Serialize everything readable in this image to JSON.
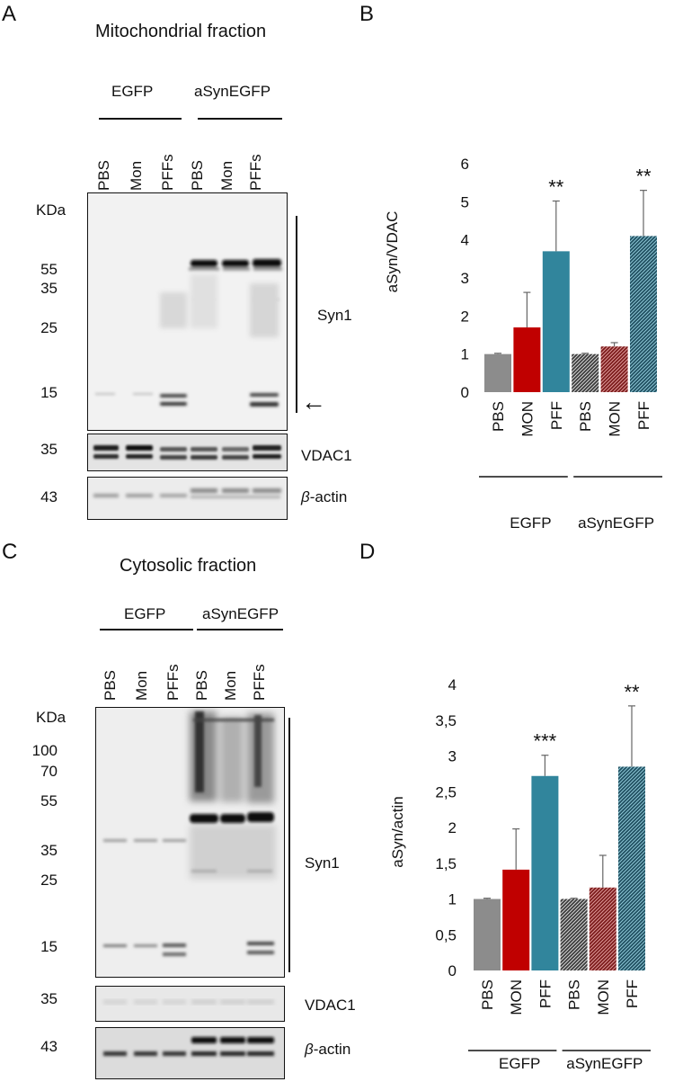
{
  "panels": {
    "A": {
      "letter": "A",
      "title": "Mitochondrial fraction",
      "groups": [
        "EGFP",
        "aSynEGFP"
      ],
      "lanes": [
        "PBS",
        "Mon",
        "PFFs",
        "PBS",
        "Mon",
        "PFFs"
      ],
      "kda_label": "KDa",
      "mw_markers": [
        "55",
        "35",
        "25",
        "15"
      ],
      "bands": {
        "syn1": "Syn1",
        "vdac": "VDAC1",
        "actin_prefix": "β",
        "actin_suffix": "-actin"
      },
      "vdac_mw": "35",
      "actin_mw": "43",
      "arrow": "←"
    },
    "C": {
      "letter": "C",
      "title": "Cytosolic fraction",
      "groups": [
        "EGFP",
        "aSynEGFP"
      ],
      "lanes": [
        "PBS",
        "Mon",
        "PFFs",
        "PBS",
        "Mon",
        "PFFs"
      ],
      "kda_label": "KDa",
      "mw_markers": [
        "100",
        "70",
        "55",
        "35",
        "25",
        "15"
      ],
      "bands": {
        "syn1": "Syn1",
        "vdac": "VDAC1",
        "actin_prefix": "β",
        "actin_suffix": "-actin"
      },
      "vdac_mw": "35",
      "actin_mw": "43"
    },
    "B": {
      "letter": "B"
    },
    "D": {
      "letter": "D"
    }
  },
  "colors": {
    "pbs": "#8c8c8c",
    "mon": "#c00000",
    "pff": "#31859c",
    "pbs_hatch": "#3a3a3a",
    "mon_hatch": "#7a1a1a",
    "pff_hatch": "#1f4e5f"
  },
  "chart_data": [
    {
      "type": "bar",
      "panel": "B",
      "ylabel": "aSyn/VDAC",
      "categories": [
        "PBS",
        "MON",
        "PFF",
        "PBS",
        "MON",
        "PFF"
      ],
      "groups": [
        "EGFP",
        "aSynEGFP"
      ],
      "values": [
        1.0,
        1.7,
        3.7,
        1.0,
        1.2,
        4.1
      ],
      "errors": [
        0.02,
        0.92,
        1.32,
        0.02,
        0.1,
        1.2
      ],
      "significance": [
        "",
        "",
        "**",
        "",
        "",
        "**"
      ],
      "yticks": [
        "0",
        "1",
        "2",
        "3",
        "4",
        "5",
        "6"
      ],
      "ylim": [
        0,
        6
      ]
    },
    {
      "type": "bar",
      "panel": "D",
      "ylabel": "aSyn/actin",
      "categories": [
        "PBS",
        "MON",
        "PFF",
        "PBS",
        "MON",
        "PFF"
      ],
      "groups": [
        "EGFP",
        "aSynEGFP"
      ],
      "values": [
        1.0,
        1.41,
        2.72,
        1.0,
        1.16,
        2.85
      ],
      "errors": [
        0.01,
        0.57,
        0.29,
        0.01,
        0.45,
        0.85
      ],
      "significance": [
        "",
        "",
        "***",
        "",
        "",
        "**"
      ],
      "yticks": [
        "0",
        "0,5",
        "1",
        "1,5",
        "2",
        "2,5",
        "3",
        "3,5",
        "4"
      ],
      "ylim": [
        0,
        4
      ]
    }
  ]
}
